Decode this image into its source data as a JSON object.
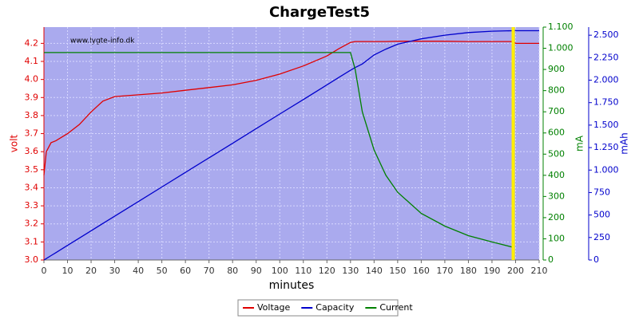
{
  "chart_data": {
    "type": "line",
    "title": "ChargeTest5",
    "annotation": "www.lygte-info.dk",
    "xlabel": "minutes",
    "ylabel": "volt",
    "y2label": "mA",
    "y3label": "mAh",
    "x": [
      0,
      1,
      3,
      5,
      10,
      15,
      20,
      25,
      30,
      40,
      50,
      60,
      70,
      80,
      90,
      100,
      110,
      120,
      125,
      130,
      132,
      135,
      140,
      145,
      150,
      160,
      170,
      180,
      190,
      199,
      200,
      210
    ],
    "xlim": [
      0,
      210
    ],
    "xticks": [
      0,
      10,
      20,
      30,
      40,
      50,
      60,
      70,
      80,
      90,
      100,
      110,
      120,
      130,
      140,
      150,
      160,
      170,
      180,
      190,
      200,
      210
    ],
    "ylim": [
      3.0,
      4.29
    ],
    "yticks": [
      {
        "value": 3.0,
        "label": "3.0"
      },
      3.1,
      3.2,
      3.3,
      3.4,
      3.5,
      3.6,
      3.7,
      3.8,
      3.9,
      {
        "value": 4.0,
        "label": "4.0"
      },
      4.1,
      4.2
    ],
    "y2lim": [
      0,
      1100
    ],
    "y2ticks": [
      0,
      100,
      200,
      300,
      400,
      500,
      600,
      700,
      800,
      900,
      {
        "value": 1000,
        "label": "1.000"
      },
      {
        "value": 1100,
        "label": "1.100"
      }
    ],
    "y3lim": [
      0,
      2590
    ],
    "y3ticks": [
      0,
      250,
      500,
      750,
      {
        "value": 1000,
        "label": "1.000"
      },
      {
        "value": 1250,
        "label": "1.250"
      },
      {
        "value": 1500,
        "label": "1.500"
      },
      {
        "value": 1750,
        "label": "1.750"
      },
      {
        "value": 2000,
        "label": "2.000"
      },
      {
        "value": 2250,
        "label": "2.250"
      },
      {
        "value": 2500,
        "label": "2.500"
      }
    ],
    "grid": true,
    "marker_x": 199,
    "series": [
      {
        "name": "Voltage",
        "color": "#e00000",
        "axis": "y",
        "values": [
          3.47,
          3.6,
          3.65,
          3.66,
          3.7,
          3.75,
          3.82,
          3.88,
          3.905,
          3.915,
          3.925,
          3.94,
          3.955,
          3.97,
          3.995,
          4.03,
          4.075,
          4.13,
          4.17,
          4.205,
          4.21,
          4.21,
          4.21,
          4.21,
          4.212,
          4.212,
          4.212,
          4.21,
          4.21,
          4.21,
          4.2,
          4.2
        ]
      },
      {
        "name": "Capacity",
        "color": "#0000cc",
        "axis": "y3",
        "values": [
          0,
          16,
          49,
          81,
          162,
          243,
          325,
          406,
          487,
          649,
          812,
          974,
          1136,
          1298,
          1461,
          1623,
          1785,
          1948,
          2029,
          2110,
          2140,
          2180,
          2280,
          2345,
          2400,
          2460,
          2500,
          2530,
          2545,
          2550,
          2550,
          2550
        ]
      },
      {
        "name": "Current",
        "color": "#008000",
        "axis": "y2",
        "values": [
          980,
          980,
          980,
          980,
          980,
          980,
          980,
          980,
          980,
          980,
          980,
          980,
          980,
          980,
          980,
          980,
          980,
          980,
          980,
          980,
          900,
          700,
          520,
          400,
          320,
          220,
          160,
          115,
          85,
          60,
          null,
          null
        ]
      }
    ]
  }
}
